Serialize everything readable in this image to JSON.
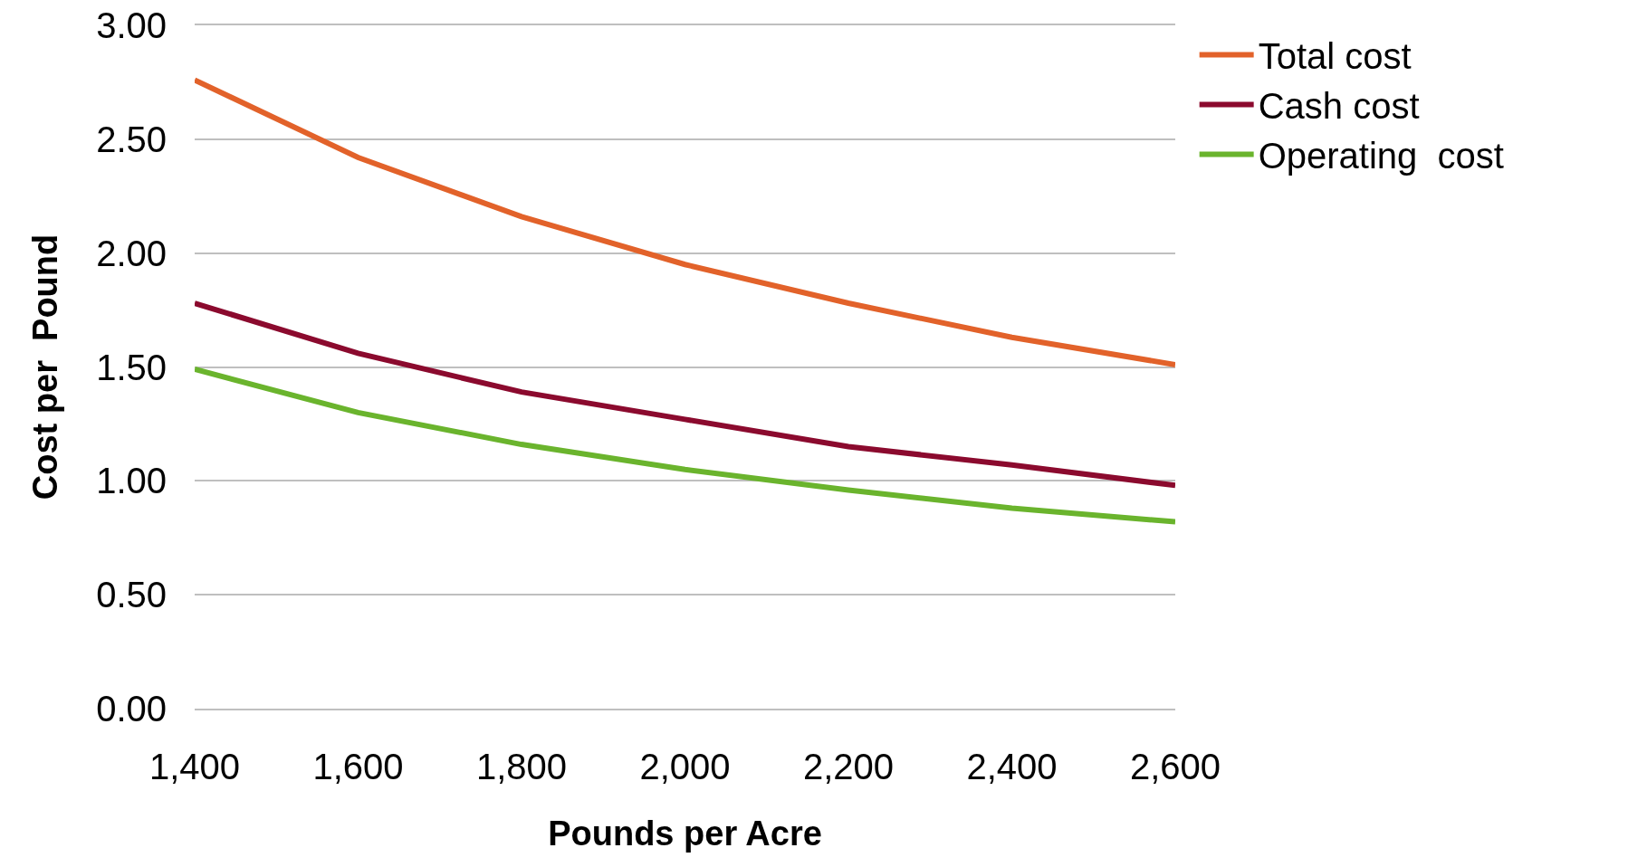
{
  "chart_data": {
    "type": "line",
    "xlabel": "Pounds per Acre",
    "ylabel": "Cost per  Pound",
    "x": [
      1400,
      1600,
      1800,
      2000,
      2200,
      2400,
      2600
    ],
    "series": [
      {
        "name": "Total cost",
        "color": "#e2622a",
        "values": [
          2.76,
          2.42,
          2.16,
          1.95,
          1.78,
          1.63,
          1.51
        ]
      },
      {
        "name": "Cash cost",
        "color": "#8b0a2e",
        "values": [
          1.78,
          1.56,
          1.39,
          1.27,
          1.15,
          1.07,
          0.98
        ]
      },
      {
        "name": "Operating  cost",
        "color": "#6ab42d",
        "values": [
          1.49,
          1.3,
          1.16,
          1.05,
          0.96,
          0.88,
          0.82
        ]
      }
    ],
    "xlim": [
      1400,
      2600
    ],
    "xticks": [
      {
        "value": 1400,
        "label": "1,400"
      },
      {
        "value": 1600,
        "label": "1,600"
      },
      {
        "value": 1800,
        "label": "1,800"
      },
      {
        "value": 2000,
        "label": "2,000"
      },
      {
        "value": 2200,
        "label": "2,200"
      },
      {
        "value": 2400,
        "label": "2,400"
      },
      {
        "value": 2600,
        "label": "2,600"
      }
    ],
    "ylim": [
      0,
      3
    ],
    "yticks": [
      {
        "value": 0,
        "label": "0.00"
      },
      {
        "value": 0.5,
        "label": "0.50"
      },
      {
        "value": 1,
        "label": "1.00"
      },
      {
        "value": 1.5,
        "label": "1.50"
      },
      {
        "value": 2,
        "label": "2.00"
      },
      {
        "value": 2.5,
        "label": "2.50"
      },
      {
        "value": 3,
        "label": "3.00"
      }
    ],
    "grid": "y",
    "legend": "top right",
    "marker": "none",
    "line_style": "solid"
  }
}
